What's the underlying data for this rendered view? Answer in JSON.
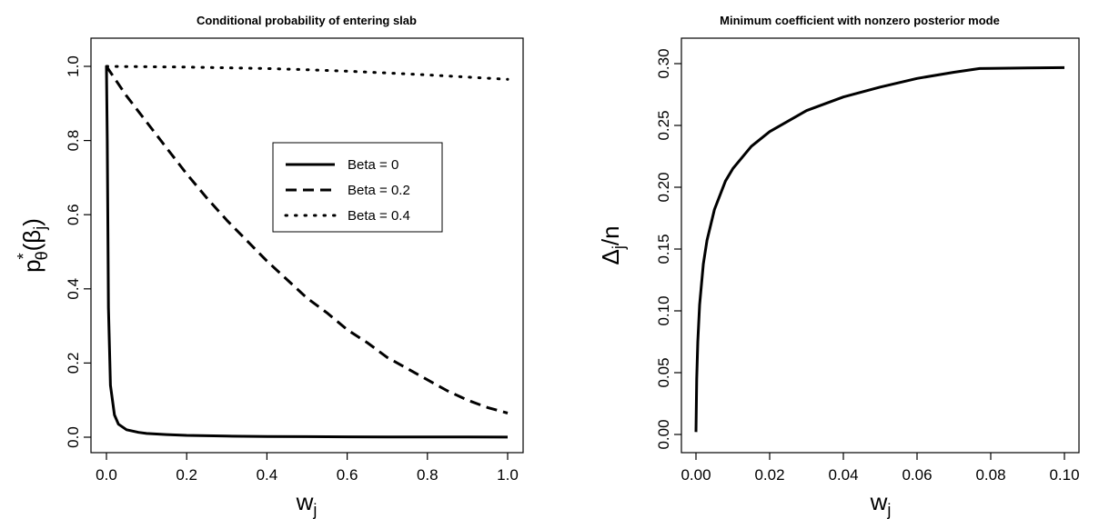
{
  "chart_data": [
    {
      "type": "line",
      "title": "Conditional probability of entering slab",
      "xlabel": "w",
      "xlabel_sub": "j",
      "ylabel_parts": [
        "p",
        "*",
        "θ",
        "(β",
        "j",
        ")"
      ],
      "xlim": [
        0,
        1
      ],
      "ylim": [
        0,
        1
      ],
      "xticks": [
        "0.0",
        "0.2",
        "0.4",
        "0.6",
        "0.8",
        "1.0"
      ],
      "yticks": [
        "0.0",
        "0.2",
        "0.4",
        "0.6",
        "0.8",
        "1.0"
      ],
      "legend_position": "center-right",
      "series": [
        {
          "name": "Beta =  0",
          "style": "solid",
          "x": [
            0,
            0.002,
            0.005,
            0.01,
            0.02,
            0.03,
            0.05,
            0.08,
            0.1,
            0.15,
            0.2,
            0.3,
            0.4,
            0.5,
            0.6,
            0.7,
            0.8,
            0.9,
            1.0
          ],
          "y": [
            1.0,
            0.8,
            0.35,
            0.14,
            0.06,
            0.035,
            0.02,
            0.013,
            0.01,
            0.007,
            0.005,
            0.003,
            0.002,
            0.0015,
            0.001,
            0.0008,
            0.0006,
            0.0004,
            0.0003
          ]
        },
        {
          "name": "Beta = 0.2",
          "style": "dashed",
          "x": [
            0,
            0.05,
            0.1,
            0.15,
            0.2,
            0.25,
            0.3,
            0.35,
            0.4,
            0.45,
            0.5,
            0.55,
            0.6,
            0.65,
            0.7,
            0.75,
            0.8,
            0.85,
            0.9,
            0.95,
            1.0
          ],
          "y": [
            1.0,
            0.92,
            0.85,
            0.78,
            0.71,
            0.645,
            0.585,
            0.53,
            0.475,
            0.425,
            0.375,
            0.335,
            0.29,
            0.255,
            0.215,
            0.185,
            0.155,
            0.125,
            0.1,
            0.08,
            0.065
          ]
        },
        {
          "name": "Beta = 0.4",
          "style": "dotted",
          "x": [
            0,
            0.1,
            0.2,
            0.3,
            0.4,
            0.5,
            0.6,
            0.7,
            0.8,
            0.9,
            1.0
          ],
          "y": [
            1.0,
            0.999,
            0.998,
            0.996,
            0.994,
            0.991,
            0.987,
            0.982,
            0.977,
            0.971,
            0.965
          ]
        }
      ]
    },
    {
      "type": "line",
      "title": "Minimum coefficient with nonzero posterior mode",
      "xlabel": "w",
      "xlabel_sub": "j",
      "ylabel_parts": [
        "Δ",
        "j",
        "/n"
      ],
      "xlim": [
        0,
        0.1
      ],
      "ylim": [
        0,
        0.3
      ],
      "xticks": [
        "0.00",
        "0.02",
        "0.04",
        "0.06",
        "0.08",
        "0.10"
      ],
      "yticks": [
        "0.00",
        "0.05",
        "0.10",
        "0.15",
        "0.20",
        "0.25",
        "0.30"
      ],
      "series": [
        {
          "style": "solid",
          "x": [
            0.0,
            0.0002,
            0.0005,
            0.001,
            0.002,
            0.003,
            0.005,
            0.008,
            0.01,
            0.015,
            0.02,
            0.03,
            0.04,
            0.05,
            0.06,
            0.07,
            0.077,
            0.08,
            0.09,
            0.1
          ],
          "y": [
            0.002,
            0.045,
            0.075,
            0.105,
            0.138,
            0.157,
            0.182,
            0.205,
            0.215,
            0.233,
            0.245,
            0.262,
            0.273,
            0.281,
            0.288,
            0.293,
            0.296,
            0.2962,
            0.2965,
            0.2968
          ]
        }
      ]
    }
  ]
}
